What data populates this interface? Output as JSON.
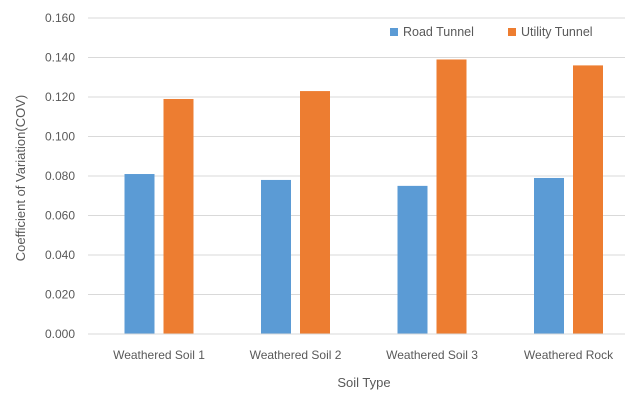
{
  "chart_data": {
    "type": "bar",
    "categories": [
      "Weathered Soil 1",
      "Weathered Soil 2",
      "Weathered Soil 3",
      "Weathered Rock"
    ],
    "series": [
      {
        "name": "Road Tunnel",
        "values": [
          0.081,
          0.078,
          0.075,
          0.079
        ],
        "color": "#5b9bd5"
      },
      {
        "name": "Utility Tunnel",
        "values": [
          0.119,
          0.123,
          0.139,
          0.136
        ],
        "color": "#ed7d31"
      }
    ],
    "title": "",
    "xlabel": "Soil Type",
    "ylabel": "Coefficient of Variation(COV)",
    "ylim": [
      0,
      0.16
    ],
    "yticks": [
      "0.000",
      "0.020",
      "0.040",
      "0.060",
      "0.080",
      "0.100",
      "0.120",
      "0.140",
      "0.160"
    ],
    "grid": true,
    "legend_position": "top-right",
    "gridline_color": "#d9d9d9"
  }
}
